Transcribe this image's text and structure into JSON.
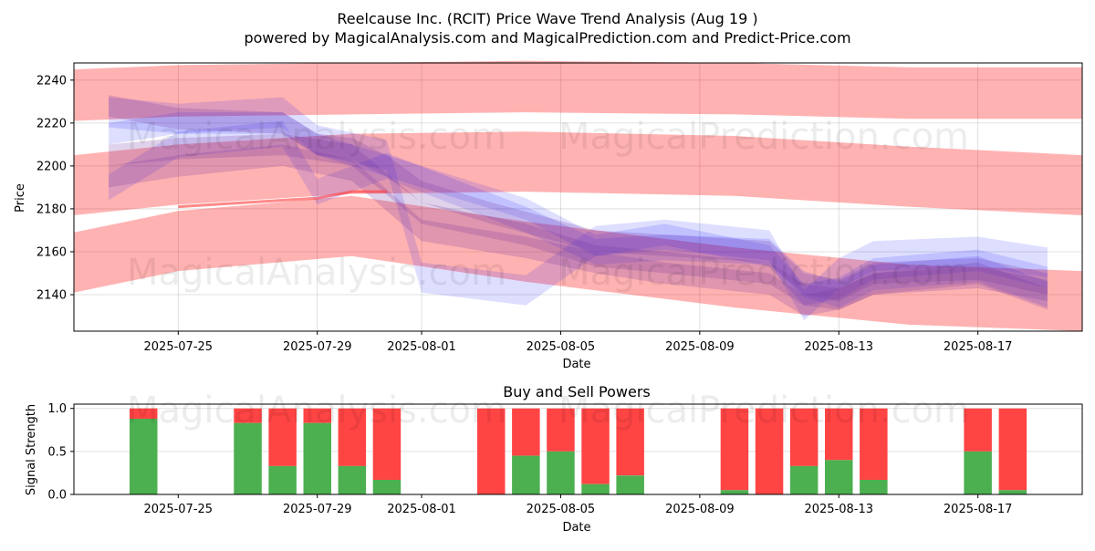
{
  "title_line1": "Reelcause Inc. (RCIT) Price Wave Trend Analysis (Aug 19 )",
  "title_line2": "powered by MagicalAnalysis.com and MagicalPrediction.com and Predict-Price.com",
  "watermarks": [
    "MagicalAnalysis.com",
    "MagicalPrediction.com"
  ],
  "colors": {
    "red_band": "#ff0000",
    "blue_band": "#0000ff",
    "buy": "#4caf50",
    "sell": "#ff4444"
  },
  "chart_data": [
    {
      "type": "area",
      "name": "price-wave-chart",
      "xlabel": "Date",
      "ylabel": "Price",
      "ylim": [
        2123,
        2248
      ],
      "xlim": [
        "2025-07-22",
        "2025-08-20"
      ],
      "yticks": [
        2140,
        2160,
        2180,
        2200,
        2220,
        2240
      ],
      "xticks": [
        "2025-07-25",
        "2025-07-29",
        "2025-08-01",
        "2025-08-05",
        "2025-08-09",
        "2025-08-13",
        "2025-08-17"
      ],
      "red_bands": [
        {
          "x": [
            "2025-07-22",
            "2025-07-25",
            "2025-07-30",
            "2025-08-04",
            "2025-08-10",
            "2025-08-15",
            "2025-08-20"
          ],
          "center": [
            2233,
            2235,
            2236,
            2237,
            2236,
            2234,
            2234
          ],
          "half_width": 12
        },
        {
          "x": [
            "2025-07-22",
            "2025-07-25",
            "2025-07-30",
            "2025-08-04",
            "2025-08-10",
            "2025-08-15",
            "2025-08-20"
          ],
          "center": [
            2191,
            2196,
            2201,
            2202,
            2200,
            2195,
            2191
          ],
          "half_width": 14
        },
        {
          "x": [
            "2025-07-22",
            "2025-07-25",
            "2025-07-30",
            "2025-08-04",
            "2025-08-10",
            "2025-08-15",
            "2025-08-20"
          ],
          "center": [
            2155,
            2165,
            2172,
            2160,
            2148,
            2140,
            2137
          ],
          "half_width": 14
        }
      ],
      "blue_bands": [
        {
          "x": [
            "2025-07-23",
            "2025-07-25",
            "2025-07-28",
            "2025-07-29",
            "2025-07-31",
            "2025-08-04",
            "2025-08-06",
            "2025-08-08",
            "2025-08-11",
            "2025-08-12",
            "2025-08-13",
            "2025-08-14",
            "2025-08-17",
            "2025-08-19"
          ],
          "center": [
            2215,
            2220,
            2220,
            2210,
            2200,
            2180,
            2163,
            2168,
            2158,
            2140,
            2143,
            2152,
            2156,
            2148
          ],
          "half_width": 5
        },
        {
          "x": [
            "2025-07-23",
            "2025-07-25",
            "2025-07-28",
            "2025-07-29",
            "2025-07-31",
            "2025-08-01",
            "2025-08-04",
            "2025-08-06",
            "2025-08-08",
            "2025-08-11",
            "2025-08-12",
            "2025-08-13",
            "2025-08-14",
            "2025-08-17",
            "2025-08-19"
          ],
          "center": [
            2225,
            2222,
            2225,
            2212,
            2205,
            2148,
            2142,
            2165,
            2168,
            2163,
            2135,
            2150,
            2158,
            2160,
            2155
          ],
          "half_width": 7
        },
        {
          "x": [
            "2025-07-23",
            "2025-07-25",
            "2025-07-28",
            "2025-07-29",
            "2025-07-31",
            "2025-08-04",
            "2025-08-06",
            "2025-08-08",
            "2025-08-11",
            "2025-08-12",
            "2025-08-13",
            "2025-08-14",
            "2025-08-17",
            "2025-08-19"
          ],
          "center": [
            2190,
            2210,
            2215,
            2188,
            2200,
            2175,
            2160,
            2162,
            2160,
            2145,
            2140,
            2148,
            2152,
            2140
          ],
          "half_width": 6
        }
      ],
      "purple_bands": [
        {
          "x": [
            "2025-07-23",
            "2025-07-25",
            "2025-07-28",
            "2025-07-29",
            "2025-07-30",
            "2025-07-31",
            "2025-08-01",
            "2025-08-03",
            "2025-08-06",
            "2025-08-08",
            "2025-08-11",
            "2025-08-12",
            "2025-08-13",
            "2025-08-14",
            "2025-08-17",
            "2025-08-19"
          ],
          "center": [
            2228,
            2222,
            2220,
            2210,
            2208,
            2200,
            2188,
            2178,
            2165,
            2163,
            2160,
            2145,
            2142,
            2150,
            2152,
            2145
          ],
          "half_width": 5
        },
        {
          "x": [
            "2025-07-23",
            "2025-07-25",
            "2025-07-28",
            "2025-07-30",
            "2025-08-01",
            "2025-08-04",
            "2025-08-06",
            "2025-08-08",
            "2025-08-11",
            "2025-08-12",
            "2025-08-13",
            "2025-08-14",
            "2025-08-17",
            "2025-08-19"
          ],
          "center": [
            2205,
            2208,
            2210,
            2205,
            2178,
            2168,
            2158,
            2155,
            2150,
            2140,
            2138,
            2145,
            2148,
            2142
          ],
          "half_width": 5
        },
        {
          "x": [
            "2025-07-23",
            "2025-07-25",
            "2025-07-28",
            "2025-07-30",
            "2025-08-01",
            "2025-08-04",
            "2025-08-06",
            "2025-08-08",
            "2025-08-11",
            "2025-08-12",
            "2025-08-13",
            "2025-08-14",
            "2025-08-17",
            "2025-08-19"
          ],
          "center": [
            2195,
            2200,
            2205,
            2198,
            2170,
            2162,
            2155,
            2150,
            2145,
            2135,
            2138,
            2145,
            2150,
            2138
          ],
          "half_width": 5
        }
      ],
      "red_line": {
        "x": [
          "2025-07-25",
          "2025-07-28",
          "2025-07-29",
          "2025-07-30",
          "2025-07-31"
        ],
        "y": [
          2181,
          2184,
          2185,
          2188,
          2188
        ]
      }
    },
    {
      "type": "bar",
      "name": "buy-sell-powers",
      "title": "Buy and Sell Powers",
      "xlabel": "Date",
      "ylabel": "Signal Strength",
      "ylim": [
        0,
        1.05
      ],
      "yticks": [
        "0.0",
        "0.5",
        "1.0"
      ],
      "xticks": [
        "2025-07-25",
        "2025-07-29",
        "2025-08-01",
        "2025-08-05",
        "2025-08-09",
        "2025-08-13",
        "2025-08-17"
      ],
      "xlim": [
        "2025-07-22",
        "2025-08-20"
      ],
      "series": [
        {
          "name": "Buy",
          "color": "#4caf50"
        },
        {
          "name": "Sell",
          "color": "#ff4444"
        }
      ],
      "bars": [
        {
          "date": "2025-07-24",
          "buy": 0.88
        },
        {
          "date": "2025-07-27",
          "buy": 0.83
        },
        {
          "date": "2025-07-28",
          "buy": 0.33
        },
        {
          "date": "2025-07-29",
          "buy": 0.83
        },
        {
          "date": "2025-07-30",
          "buy": 0.33
        },
        {
          "date": "2025-07-31",
          "buy": 0.17
        },
        {
          "date": "2025-08-03",
          "buy": 0.0
        },
        {
          "date": "2025-08-04",
          "buy": 0.45
        },
        {
          "date": "2025-08-05",
          "buy": 0.5
        },
        {
          "date": "2025-08-06",
          "buy": 0.12
        },
        {
          "date": "2025-08-07",
          "buy": 0.22
        },
        {
          "date": "2025-08-10",
          "buy": 0.05
        },
        {
          "date": "2025-08-11",
          "buy": 0.0
        },
        {
          "date": "2025-08-12",
          "buy": 0.33
        },
        {
          "date": "2025-08-13",
          "buy": 0.4
        },
        {
          "date": "2025-08-14",
          "buy": 0.17
        },
        {
          "date": "2025-08-17",
          "buy": 0.5
        },
        {
          "date": "2025-08-18",
          "buy": 0.05
        }
      ]
    }
  ]
}
